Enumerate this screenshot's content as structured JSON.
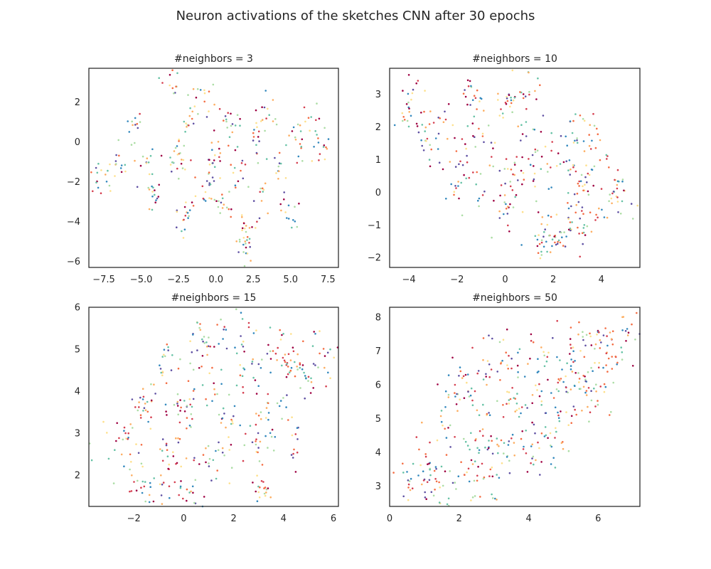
{
  "figure": {
    "title": "Neuron activations of the sketches CNN after 30 epochs"
  },
  "palette": [
    "#9e0142",
    "#d53e4f",
    "#f46d43",
    "#fdae61",
    "#fee08b",
    "#abdda4",
    "#66c2a5",
    "#3288bd",
    "#5e4fa2"
  ],
  "chart_data": [
    {
      "type": "scatter",
      "title": "#neighbors = 3",
      "xlim": [
        -8.5,
        8.2
      ],
      "ylim": [
        -6.3,
        3.7
      ],
      "xticks": [
        -7.5,
        -5.0,
        -2.5,
        0.0,
        2.5,
        5.0,
        7.5
      ],
      "xtick_labels": [
        "−7.5",
        "−5.0",
        "−2.5",
        "0.0",
        "2.5",
        "5.0",
        "7.5"
      ],
      "yticks": [
        -6,
        -4,
        -2,
        0,
        2
      ],
      "ytick_labels": [
        "−6",
        "−4",
        "−2",
        "0",
        "2"
      ],
      "grid": false,
      "cluster_centers": [
        [
          -7.7,
          -1.8
        ],
        [
          -6.5,
          -1.3
        ],
        [
          -5.5,
          0.7
        ],
        [
          -4.5,
          -0.8
        ],
        [
          -4.0,
          -2.5
        ],
        [
          -3.0,
          2.8
        ],
        [
          -2.5,
          -0.8
        ],
        [
          -2.0,
          -3.5
        ],
        [
          -1.5,
          1.3
        ],
        [
          -1.0,
          2.0
        ],
        [
          -0.5,
          -1.8
        ],
        [
          0.0,
          -0.5
        ],
        [
          0.5,
          -3.0
        ],
        [
          1.0,
          0.8
        ],
        [
          1.5,
          -1.5
        ],
        [
          2.0,
          -4.2
        ],
        [
          2.5,
          0.2
        ],
        [
          3.0,
          -2.8
        ],
        [
          3.3,
          1.5
        ],
        [
          4.2,
          -1.0
        ],
        [
          4.8,
          -3.5
        ],
        [
          5.5,
          0.3
        ],
        [
          6.3,
          1.2
        ],
        [
          7.0,
          -0.2
        ],
        [
          2.0,
          -5.2
        ]
      ],
      "spread": [
        0.35,
        0.5
      ],
      "n_points": 360,
      "seed": 11
    },
    {
      "type": "scatter",
      "title": "#neighbors = 10",
      "xlim": [
        -4.8,
        5.6
      ],
      "ylim": [
        -2.3,
        3.8
      ],
      "xticks": [
        -4,
        -2,
        0,
        2,
        4
      ],
      "xtick_labels": [
        "−4",
        "−2",
        "0",
        "2",
        "4"
      ],
      "yticks": [
        -2,
        -1,
        0,
        1,
        2,
        3
      ],
      "ytick_labels": [
        "−2",
        "−1",
        "0",
        "1",
        "2",
        "3"
      ],
      "grid": false,
      "cluster_centers": [
        [
          -4.0,
          2.5
        ],
        [
          -3.3,
          1.5
        ],
        [
          -2.5,
          2.0
        ],
        [
          -2.0,
          0.8
        ],
        [
          -1.2,
          2.8
        ],
        [
          -1.5,
          0.3
        ],
        [
          -0.5,
          1.5
        ],
        [
          0.2,
          2.7
        ],
        [
          0.5,
          0.5
        ],
        [
          1.0,
          3.2
        ],
        [
          1.2,
          1.8
        ],
        [
          1.8,
          -0.8
        ],
        [
          1.8,
          -1.5
        ],
        [
          2.5,
          0.8
        ],
        [
          2.5,
          -1.2
        ],
        [
          3.0,
          2.0
        ],
        [
          3.3,
          0.0
        ],
        [
          3.8,
          1.2
        ],
        [
          4.2,
          -0.6
        ],
        [
          4.8,
          0.0
        ],
        [
          3.0,
          -0.9
        ],
        [
          0.0,
          -0.5
        ],
        [
          -3.8,
          2.7
        ],
        [
          1.5,
          1.0
        ]
      ],
      "spread": [
        0.35,
        0.4
      ],
      "n_points": 420,
      "seed": 23
    },
    {
      "type": "scatter",
      "title": "#neighbors = 15",
      "xlim": [
        -3.8,
        6.2
      ],
      "ylim": [
        1.25,
        6.0
      ],
      "xticks": [
        -2,
        0,
        2,
        4,
        6
      ],
      "xtick_labels": [
        "−2",
        "0",
        "2",
        "4",
        "6"
      ],
      "yticks": [
        2,
        3,
        4,
        5,
        6
      ],
      "ytick_labels": [
        "2",
        "3",
        "4",
        "5",
        "6"
      ],
      "grid": false,
      "cluster_centers": [
        [
          -3.2,
          2.6
        ],
        [
          -2.5,
          3.0
        ],
        [
          -1.8,
          1.9
        ],
        [
          -1.5,
          3.6
        ],
        [
          -0.8,
          4.5
        ],
        [
          -0.5,
          2.5
        ],
        [
          0.0,
          3.5
        ],
        [
          0.3,
          1.6
        ],
        [
          0.8,
          5.1
        ],
        [
          1.0,
          4.2
        ],
        [
          1.2,
          2.4
        ],
        [
          1.8,
          3.3
        ],
        [
          2.0,
          5.5
        ],
        [
          2.5,
          4.5
        ],
        [
          2.8,
          2.6
        ],
        [
          3.2,
          1.8
        ],
        [
          3.5,
          5.0
        ],
        [
          3.8,
          3.7
        ],
        [
          4.2,
          4.6
        ],
        [
          4.5,
          2.7
        ],
        [
          5.0,
          4.3
        ],
        [
          5.5,
          4.9
        ],
        [
          3.0,
          3.2
        ],
        [
          -1.0,
          1.7
        ]
      ],
      "spread": [
        0.35,
        0.3
      ],
      "n_points": 440,
      "seed": 37
    },
    {
      "type": "scatter",
      "title": "#neighbors = 50",
      "xlim": [
        0.0,
        7.2
      ],
      "ylim": [
        2.4,
        8.3
      ],
      "xticks": [
        0,
        2,
        4,
        6
      ],
      "xtick_labels": [
        "0",
        "2",
        "4",
        "6"
      ],
      "yticks": [
        3,
        4,
        5,
        6,
        7,
        8
      ],
      "ytick_labels": [
        "3",
        "4",
        "5",
        "6",
        "7",
        "8"
      ],
      "grid": false,
      "cluster_centers": [
        [
          0.6,
          3.1
        ],
        [
          1.1,
          3.6
        ],
        [
          1.5,
          2.9
        ],
        [
          1.7,
          4.6
        ],
        [
          2.0,
          5.8
        ],
        [
          2.3,
          3.6
        ],
        [
          2.6,
          4.8
        ],
        [
          3.0,
          6.6
        ],
        [
          3.1,
          4.1
        ],
        [
          3.5,
          5.5
        ],
        [
          3.8,
          6.9
        ],
        [
          4.0,
          4.5
        ],
        [
          4.3,
          5.9
        ],
        [
          4.7,
          7.0
        ],
        [
          5.0,
          5.1
        ],
        [
          5.3,
          6.3
        ],
        [
          5.7,
          7.4
        ],
        [
          5.9,
          5.7
        ],
        [
          6.3,
          6.8
        ],
        [
          6.6,
          7.5
        ],
        [
          2.9,
          2.8
        ],
        [
          4.5,
          4.0
        ]
      ],
      "spread": [
        0.35,
        0.4
      ],
      "n_points": 460,
      "seed": 53
    }
  ]
}
